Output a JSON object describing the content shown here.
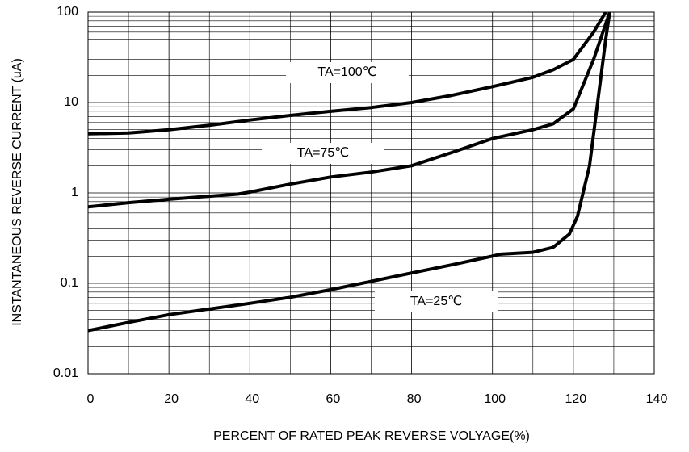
{
  "chart_data": {
    "type": "line",
    "xlabel": "PERCENT OF RATED PEAK REVERSE VOLYAGE(%)",
    "ylabel": "INSTANTANEOUS REVERSE CURRENT (uA)",
    "xlim": [
      0,
      140
    ],
    "xticks": [
      0,
      20,
      40,
      60,
      80,
      100,
      120,
      140
    ],
    "ylim": [
      0.01,
      100
    ],
    "yticks": [
      0.01,
      0.1,
      1,
      10,
      100
    ],
    "yscale": "log",
    "grid": true,
    "series": [
      {
        "name": "TA=100℃",
        "color": "#000000",
        "x": [
          0,
          10,
          20,
          30,
          40,
          50,
          60,
          70,
          80,
          90,
          100,
          110,
          115,
          120,
          125,
          128
        ],
        "values": [
          4.5,
          4.6,
          5,
          5.6,
          6.4,
          7.2,
          8,
          8.8,
          10,
          12,
          15,
          19,
          23,
          30,
          60,
          100
        ]
      },
      {
        "name": "TA=75℃",
        "color": "#000000",
        "x": [
          0,
          10,
          20,
          30,
          37,
          40,
          50,
          60,
          70,
          80,
          90,
          100,
          110,
          115,
          120,
          125,
          129
        ],
        "values": [
          0.7,
          0.78,
          0.85,
          0.92,
          0.97,
          1.02,
          1.25,
          1.5,
          1.7,
          2,
          2.8,
          4,
          5,
          5.8,
          8.5,
          30,
          100
        ]
      },
      {
        "name": "TA=25℃",
        "color": "#000000",
        "x": [
          0,
          10,
          20,
          30,
          40,
          50,
          60,
          70,
          80,
          90,
          100,
          102,
          110,
          115,
          119,
          121,
          124,
          126,
          128,
          129
        ],
        "values": [
          0.03,
          0.037,
          0.045,
          0.052,
          0.06,
          0.07,
          0.085,
          0.105,
          0.13,
          0.16,
          0.2,
          0.21,
          0.22,
          0.25,
          0.35,
          0.55,
          2,
          10,
          50,
          100
        ]
      }
    ]
  }
}
